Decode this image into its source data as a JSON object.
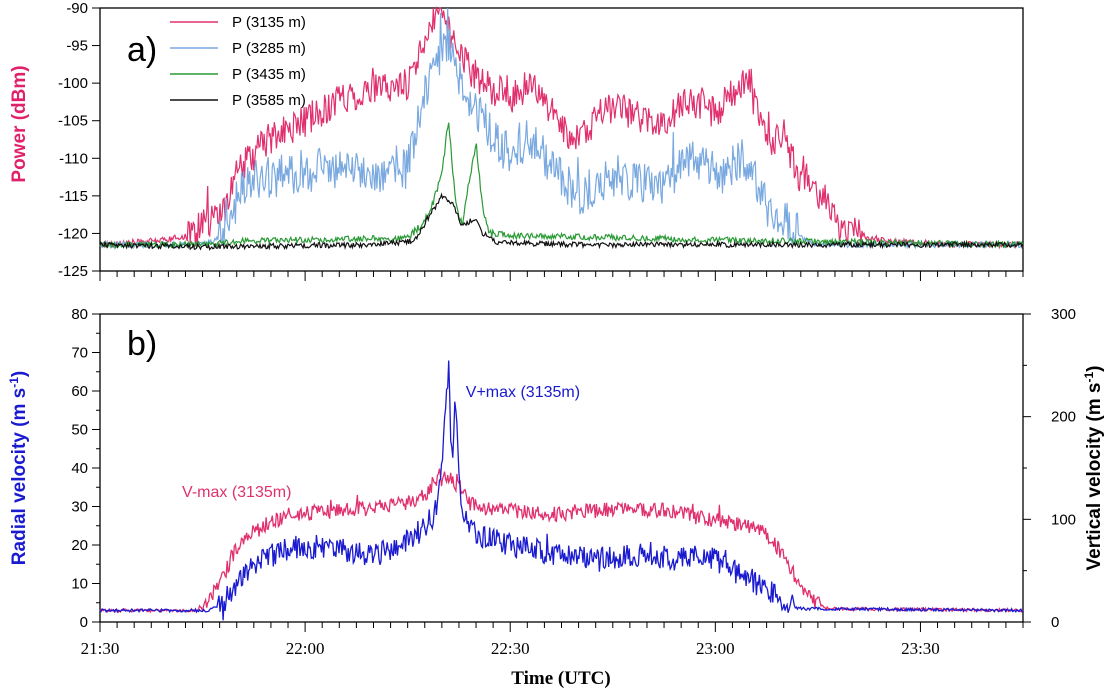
{
  "chart_data": [
    {
      "type": "line",
      "panel_label": "a)",
      "ylabel": "Power (dBm)",
      "ylim": [
        -125,
        -90
      ],
      "yticks": [
        -125,
        -120,
        -115,
        -110,
        -105,
        -100,
        -95,
        -90
      ],
      "xlim": [
        0,
        135
      ],
      "legend": "top-left",
      "colors": {
        "ylabel": "#e0206a"
      },
      "series": [
        {
          "label": "P (3135 m)",
          "color": "#e0306e",
          "profile": [
            [
              0,
              -121.5
            ],
            [
              8,
              -121
            ],
            [
              12,
              -120.5
            ],
            [
              15,
              -119
            ],
            [
              18,
              -117
            ],
            [
              20,
              -112
            ],
            [
              24,
              -108
            ],
            [
              28,
              -106
            ],
            [
              32,
              -104
            ],
            [
              35,
              -102
            ],
            [
              40,
              -101
            ],
            [
              45,
              -100
            ],
            [
              47,
              -96
            ],
            [
              48,
              -92
            ],
            [
              50,
              -90.5
            ],
            [
              52,
              -95
            ],
            [
              54,
              -98
            ],
            [
              56,
              -100
            ],
            [
              60,
              -102
            ],
            [
              63,
              -100
            ],
            [
              66,
              -104
            ],
            [
              70,
              -108
            ],
            [
              74,
              -103
            ],
            [
              78,
              -104
            ],
            [
              82,
              -106
            ],
            [
              86,
              -102
            ],
            [
              90,
              -104
            ],
            [
              94,
              -100
            ],
            [
              96,
              -103
            ],
            [
              98,
              -108
            ],
            [
              100,
              -107
            ],
            [
              102,
              -112
            ],
            [
              104,
              -114
            ],
            [
              106,
              -115
            ],
            [
              108,
              -119
            ],
            [
              110,
              -120
            ],
            [
              115,
              -121
            ],
            [
              125,
              -121.5
            ],
            [
              135,
              -121.5
            ]
          ],
          "noise": 2.2
        },
        {
          "label": "P (3285 m)",
          "color": "#7aa9e0",
          "profile": [
            [
              0,
              -121.5
            ],
            [
              14,
              -121.5
            ],
            [
              17,
              -121
            ],
            [
              19,
              -117
            ],
            [
              22,
              -113
            ],
            [
              28,
              -112
            ],
            [
              32,
              -111
            ],
            [
              40,
              -112
            ],
            [
              45,
              -111
            ],
            [
              47,
              -103
            ],
            [
              49,
              -98
            ],
            [
              51,
              -95
            ],
            [
              53,
              -101
            ],
            [
              56,
              -105
            ],
            [
              60,
              -110
            ],
            [
              63,
              -107
            ],
            [
              66,
              -111
            ],
            [
              70,
              -115
            ],
            [
              76,
              -112
            ],
            [
              82,
              -114
            ],
            [
              86,
              -110
            ],
            [
              90,
              -112
            ],
            [
              94,
              -110
            ],
            [
              96,
              -113
            ],
            [
              98,
              -117
            ],
            [
              100,
              -118
            ],
            [
              102,
              -120
            ],
            [
              104,
              -121.5
            ],
            [
              135,
              -121.5
            ]
          ],
          "noise": 2.8
        },
        {
          "label": "P (3435 m)",
          "color": "#2a9a35",
          "profile": [
            [
              0,
              -121.5
            ],
            [
              16,
              -121.5
            ],
            [
              20,
              -121
            ],
            [
              45,
              -120.6
            ],
            [
              48,
              -118
            ],
            [
              50,
              -112
            ],
            [
              51,
              -105
            ],
            [
              52,
              -116
            ],
            [
              53,
              -119
            ],
            [
              54,
              -113
            ],
            [
              55,
              -108
            ],
            [
              56,
              -117
            ],
            [
              57,
              -120
            ],
            [
              60,
              -120.3
            ],
            [
              100,
              -121
            ],
            [
              135,
              -121.5
            ]
          ],
          "noise": 0.45
        },
        {
          "label": "P (3585 m)",
          "color": "#111111",
          "profile": [
            [
              0,
              -121.5
            ],
            [
              16,
              -121.8
            ],
            [
              40,
              -121.5
            ],
            [
              46,
              -121
            ],
            [
              48,
              -118
            ],
            [
              50,
              -115
            ],
            [
              51.5,
              -116
            ],
            [
              53,
              -119
            ],
            [
              55,
              -118
            ],
            [
              56,
              -120
            ],
            [
              58,
              -121.2
            ],
            [
              70,
              -121.5
            ],
            [
              135,
              -121.5
            ]
          ],
          "noise": 0.35
        }
      ]
    },
    {
      "type": "line",
      "panel_label": "b)",
      "ylabel": "Radial velocity (m s-1)",
      "ylabel_main": "Radial velocity (m s",
      "ylabel_sup": "-1",
      "ylabel_close": ")",
      "ylim": [
        0,
        80
      ],
      "yticks": [
        0,
        10,
        20,
        30,
        40,
        50,
        60,
        70,
        80
      ],
      "y2label": "Vertical velocity (m s-1)",
      "y2label_main": "Vertical velocity (m s",
      "y2label_sup": "-1",
      "y2label_close": ")",
      "y2lim": [
        0,
        300
      ],
      "y2ticks": [
        0,
        100,
        200,
        300
      ],
      "xlabel": "Time (UTC)",
      "xticks": [
        "21:30",
        "22:00",
        "22:30",
        "23:00",
        "23:30"
      ],
      "xlim": [
        0,
        135
      ],
      "colors": {
        "ylabel": "#1a1ad0"
      },
      "annotations": [
        {
          "text": "V-max (3135m)",
          "color": "#e0306e",
          "x": 12,
          "y": 34
        },
        {
          "text": "V+max (3135m)",
          "color": "#1a1ad0",
          "x": 53.5,
          "y": 60
        }
      ],
      "series": [
        {
          "label": "V-max (3135m)",
          "color": "#e0306e",
          "profile": [
            [
              0,
              3
            ],
            [
              14,
              3
            ],
            [
              16,
              6
            ],
            [
              18,
              12
            ],
            [
              20,
              19
            ],
            [
              24,
              25
            ],
            [
              28,
              28
            ],
            [
              35,
              29
            ],
            [
              42,
              30
            ],
            [
              47,
              32
            ],
            [
              49,
              36
            ],
            [
              51,
              38
            ],
            [
              53,
              33
            ],
            [
              55,
              30
            ],
            [
              60,
              29
            ],
            [
              66,
              28
            ],
            [
              72,
              29
            ],
            [
              78,
              29
            ],
            [
              84,
              29
            ],
            [
              88,
              27
            ],
            [
              92,
              26
            ],
            [
              96,
              24
            ],
            [
              98,
              22
            ],
            [
              100,
              17
            ],
            [
              102,
              11
            ],
            [
              104,
              6
            ],
            [
              106,
              3.5
            ],
            [
              135,
              3
            ]
          ],
          "noise": 2.0
        },
        {
          "label": "V+max (3135m)",
          "color": "#1a1ad0",
          "profile": [
            [
              0,
              3
            ],
            [
              16,
              3
            ],
            [
              18,
              5
            ],
            [
              20,
              10
            ],
            [
              22,
              14
            ],
            [
              26,
              18
            ],
            [
              30,
              20
            ],
            [
              36,
              18
            ],
            [
              40,
              17
            ],
            [
              44,
              20
            ],
            [
              47,
              24
            ],
            [
              49,
              28
            ],
            [
              50,
              40
            ],
            [
              51,
              65
            ],
            [
              51.5,
              40
            ],
            [
              52,
              60
            ],
            [
              52.5,
              38
            ],
            [
              53,
              30
            ],
            [
              54,
              24
            ],
            [
              56,
              22
            ],
            [
              60,
              20
            ],
            [
              66,
              18
            ],
            [
              72,
              16
            ],
            [
              76,
              17
            ],
            [
              80,
              18
            ],
            [
              84,
              16
            ],
            [
              88,
              18
            ],
            [
              92,
              14
            ],
            [
              96,
              10
            ],
            [
              100,
              6
            ],
            [
              102,
              3.5
            ],
            [
              135,
              3
            ]
          ],
          "noise": 3.2
        }
      ]
    }
  ]
}
